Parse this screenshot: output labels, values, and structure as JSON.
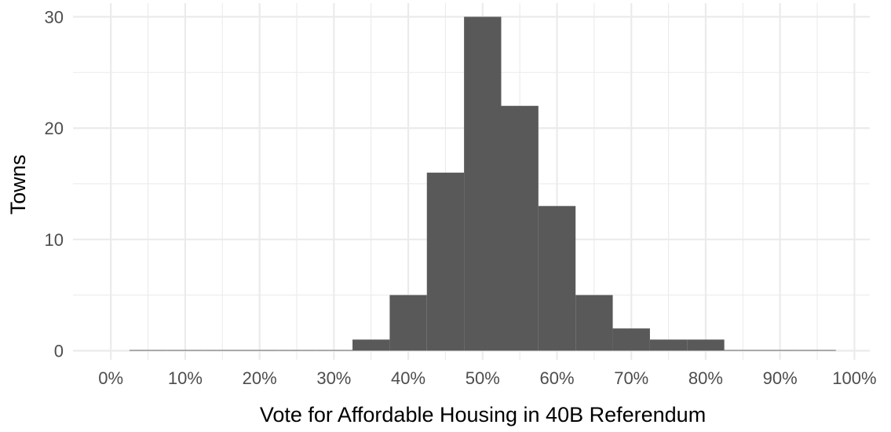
{
  "chart_data": {
    "type": "bar",
    "title": "",
    "xlabel": "Vote for Affordable Housing in 40B Referendum",
    "ylabel": "Towns",
    "xlim": [
      -0.05,
      1.05
    ],
    "ylim": [
      0,
      31
    ],
    "x_ticks": [
      {
        "value": 0.0,
        "label": "0%"
      },
      {
        "value": 0.1,
        "label": "10%"
      },
      {
        "value": 0.2,
        "label": "20%"
      },
      {
        "value": 0.3,
        "label": "30%"
      },
      {
        "value": 0.4,
        "label": "40%"
      },
      {
        "value": 0.5,
        "label": "50%"
      },
      {
        "value": 0.6,
        "label": "60%"
      },
      {
        "value": 0.7,
        "label": "70%"
      },
      {
        "value": 0.8,
        "label": "80%"
      },
      {
        "value": 0.9,
        "label": "90%"
      },
      {
        "value": 1.0,
        "label": "100%"
      }
    ],
    "y_ticks": [
      {
        "value": 0,
        "label": "0"
      },
      {
        "value": 10,
        "label": "10"
      },
      {
        "value": 20,
        "label": "20"
      },
      {
        "value": 30,
        "label": "30"
      }
    ],
    "bin_width": 0.05,
    "bin_centers": [
      0.05,
      0.1,
      0.15,
      0.2,
      0.25,
      0.3,
      0.35,
      0.4,
      0.45,
      0.5,
      0.55,
      0.6,
      0.65,
      0.7,
      0.75,
      0.8,
      0.85,
      0.9,
      0.95
    ],
    "values": [
      0,
      0,
      0,
      0,
      0,
      0,
      1,
      5,
      16,
      30,
      22,
      13,
      5,
      2,
      1,
      1,
      0,
      0,
      0
    ],
    "grid": true,
    "bar_color": "#595959",
    "grid_color": "#ebebeb"
  }
}
